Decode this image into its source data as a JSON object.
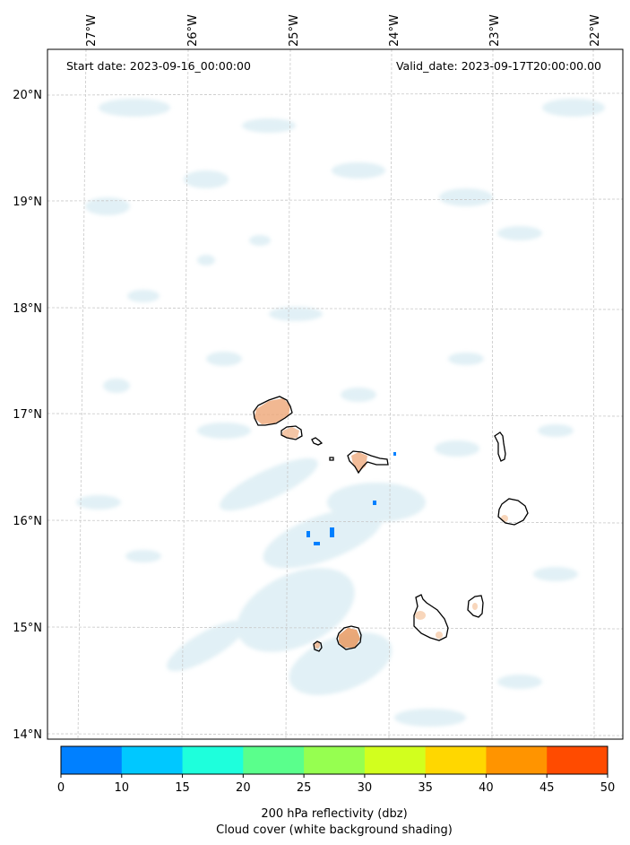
{
  "header": {
    "start_date": "Start date: 2023-09-16_00:00:00",
    "valid_date": "Valid_date: 2023-09-17T20:00:00.00"
  },
  "longitude_labels": [
    "27°W",
    "26°W",
    "25°W",
    "24°W",
    "23°W",
    "22°W"
  ],
  "latitude_labels": [
    "20°N",
    "19°N",
    "18°N",
    "17°N",
    "16°N",
    "15°N",
    "14°N"
  ],
  "colorbar": {
    "ticks": [
      "0",
      "10",
      "15",
      "20",
      "25",
      "30",
      "35",
      "40",
      "45",
      "50"
    ],
    "colors": [
      "#0080ff",
      "#00c8ff",
      "#1effdc",
      "#5aff8c",
      "#96ff50",
      "#d2ff1e",
      "#ffd700",
      "#ff9400",
      "#ff4b00"
    ],
    "label": "200 hPa reflectivity (dbz)",
    "sublabel": "Cloud cover (white background shading)"
  },
  "colors": {
    "cloud": "#c9e4ee",
    "precip_light": "#f7d2b4",
    "precip": "#eda677",
    "reflectivity_low": "#0080ff",
    "coast": "#000000",
    "grid": "#c8c8c8"
  }
}
